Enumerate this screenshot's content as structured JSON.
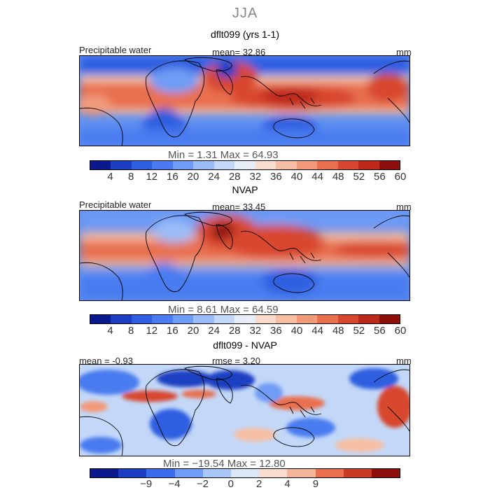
{
  "season": "JJA",
  "panels": [
    {
      "title": "dflt099 (yrs 1-1)",
      "left_label": "Precipitable water",
      "center_label": "mean=  32.86",
      "right_label": "mm",
      "min_max": "Min =    1.31  Max =  64.93",
      "colorbar_ticks": [
        "4",
        "8",
        "12",
        "16",
        "20",
        "24",
        "28",
        "32",
        "36",
        "40",
        "44",
        "48",
        "52",
        "56",
        "60"
      ]
    },
    {
      "title": "NVAP",
      "left_label": "Precipitable water",
      "center_label": "mean=  33.45",
      "right_label": "mm",
      "min_max": "Min =    8.61  Max =  64.59",
      "colorbar_ticks": [
        "4",
        "8",
        "12",
        "16",
        "20",
        "24",
        "28",
        "32",
        "36",
        "40",
        "44",
        "48",
        "52",
        "56",
        "60"
      ]
    },
    {
      "title": "dflt099 - NVAP",
      "left_label": "mean =  -0.93",
      "center_label": "rmse =    3.20",
      "right_label": "mm",
      "min_max": "Min = −19.54  Max =  12.80",
      "colorbar_ticks": [
        "−9",
        "−4",
        "−2",
        "0",
        "2",
        "4",
        "9"
      ]
    }
  ],
  "colors": {
    "seq_scale": [
      "#0a1a8c",
      "#1c3fc2",
      "#2d5fe0",
      "#4a7bf0",
      "#6f9cf5",
      "#9bbdf7",
      "#c3d8f8",
      "#e8eef7",
      "#f8ddcc",
      "#f6bfa4",
      "#f19a7a",
      "#e8704f",
      "#d8472f",
      "#bd2a1c",
      "#8c0f0b"
    ],
    "diff_scale": [
      "#0a1a8c",
      "#1c3fc2",
      "#3a6be8",
      "#6f9cf5",
      "#a9c6f8",
      "#dbe6f6",
      "#f8ddcc",
      "#f3b49a",
      "#e8704f",
      "#c93a24",
      "#8c0f0b"
    ]
  }
}
